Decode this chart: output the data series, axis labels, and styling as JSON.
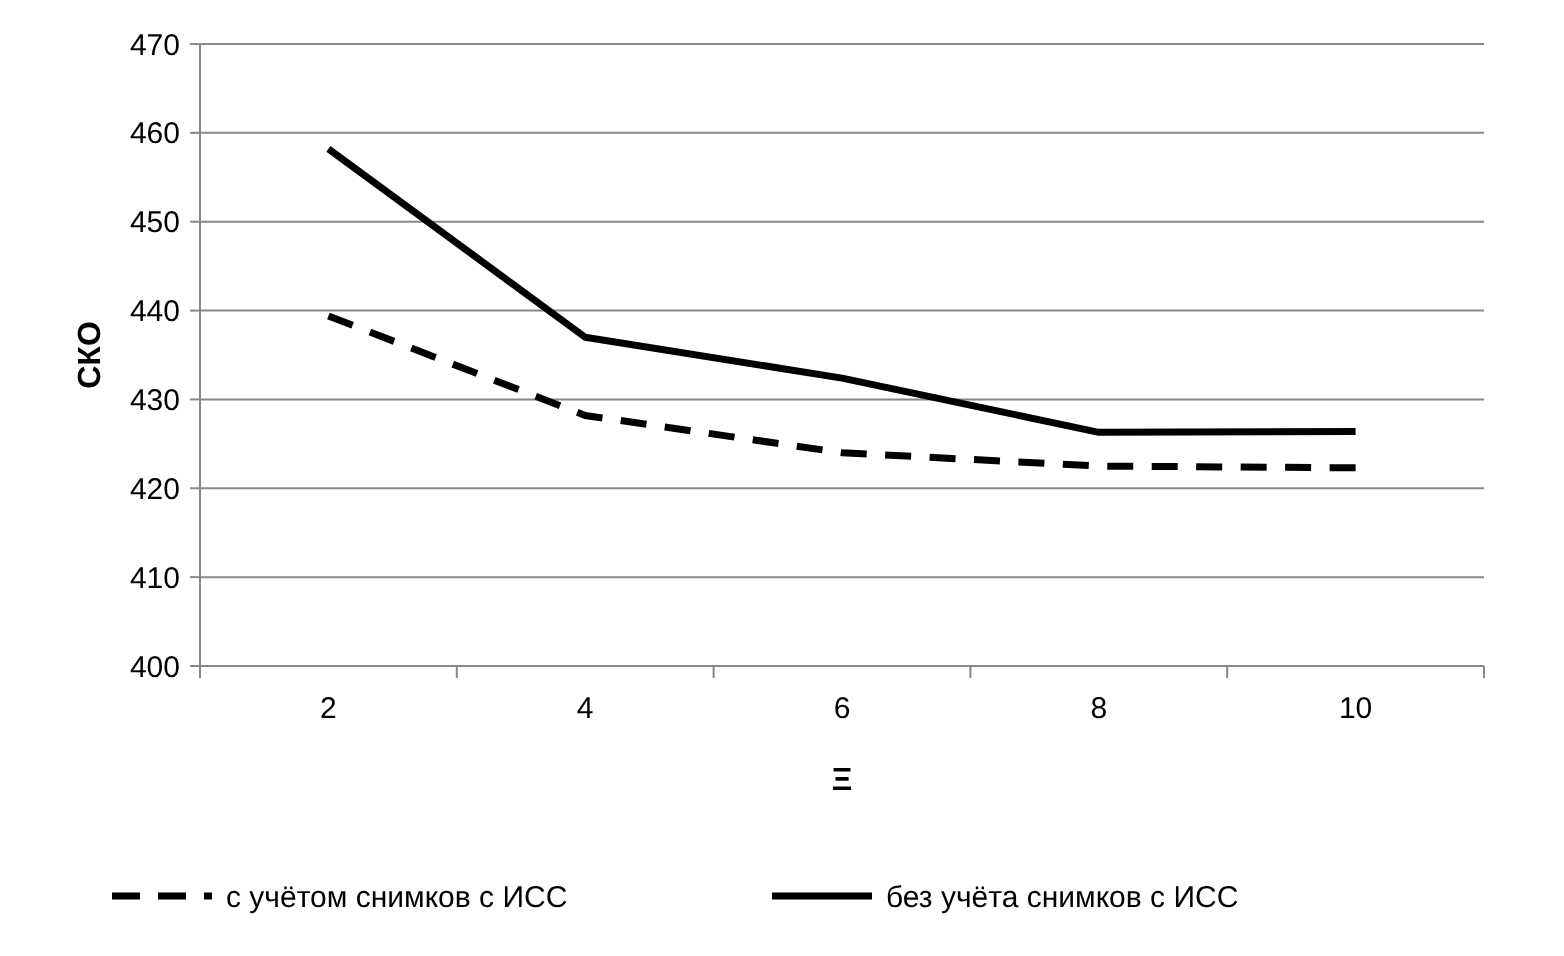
{
  "chart_data": {
    "type": "line",
    "xlabel": "Ξ",
    "ylabel": "СКО",
    "categories": [
      "2",
      "4",
      "6",
      "8",
      "10"
    ],
    "series": [
      {
        "name": "с учётом снимков с ИСС",
        "color": "#000000",
        "line_style": "dashed",
        "values": [
          439.4,
          428.2,
          424.0,
          422.5,
          422.3
        ]
      },
      {
        "name": "без учёта снимков с ИСС",
        "color": "#000000",
        "line_style": "solid",
        "values": [
          458.2,
          437.0,
          432.4,
          426.3,
          426.4
        ]
      }
    ],
    "ylim": [
      400,
      470
    ],
    "yticks": [
      400,
      410,
      420,
      430,
      440,
      450,
      460,
      470
    ],
    "grid": "y",
    "legend": "bottom",
    "marker": "none"
  }
}
